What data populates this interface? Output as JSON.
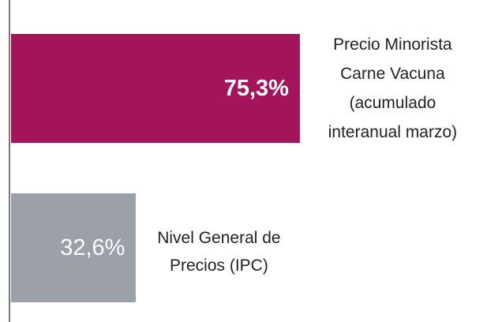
{
  "chart_data": {
    "type": "bar",
    "orientation": "horizontal",
    "categories": [
      "Precio Minorista Carne Vacuna (acumulado interanual marzo)",
      "Nivel General de Precios (IPC)"
    ],
    "values": [
      75.3,
      32.6
    ],
    "value_labels": [
      "75,3%",
      "32,6%"
    ],
    "colors": [
      "#a3145a",
      "#9ca1a9"
    ],
    "xlim": [
      0,
      100
    ]
  }
}
